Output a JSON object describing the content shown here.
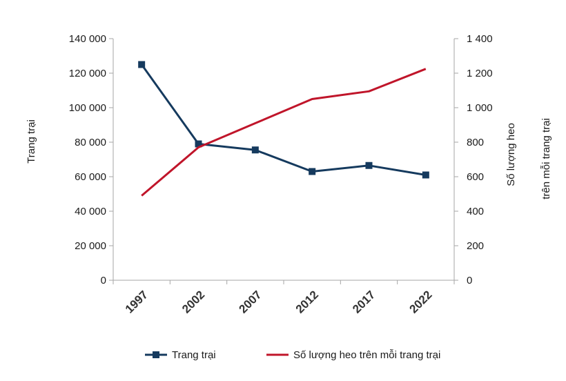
{
  "chart_data": {
    "type": "line",
    "x": [
      "1997",
      "2002",
      "2007",
      "2012",
      "2017",
      "2022"
    ],
    "series": [
      {
        "name": "Trang trại",
        "axis": "left",
        "color": "#153a5e",
        "marker": "square",
        "values": [
          125000,
          79000,
          75500,
          63000,
          66500,
          61000
        ]
      },
      {
        "name": "Số lượng heo trên mỗi trang trại",
        "axis": "right",
        "color": "#c0152a",
        "marker": "none",
        "values": [
          490,
          770,
          910,
          1050,
          1095,
          1225
        ]
      }
    ],
    "ylabel_left": "Trang trại",
    "ylabel_right": [
      "Số lượng heo",
      "trên mỗi trang trại"
    ],
    "ylim_left": [
      0,
      140000
    ],
    "ylim_right": [
      0,
      1400
    ],
    "yticks_left": [
      "0",
      "20 000",
      "40 000",
      "60 000",
      "80 000",
      "100 000",
      "120 000",
      "140 000"
    ],
    "yticks_right": [
      "0",
      "200",
      "400",
      "600",
      "800",
      "1 000",
      "1 200",
      "1 400"
    ],
    "grid": false,
    "legend_position": "bottom"
  }
}
